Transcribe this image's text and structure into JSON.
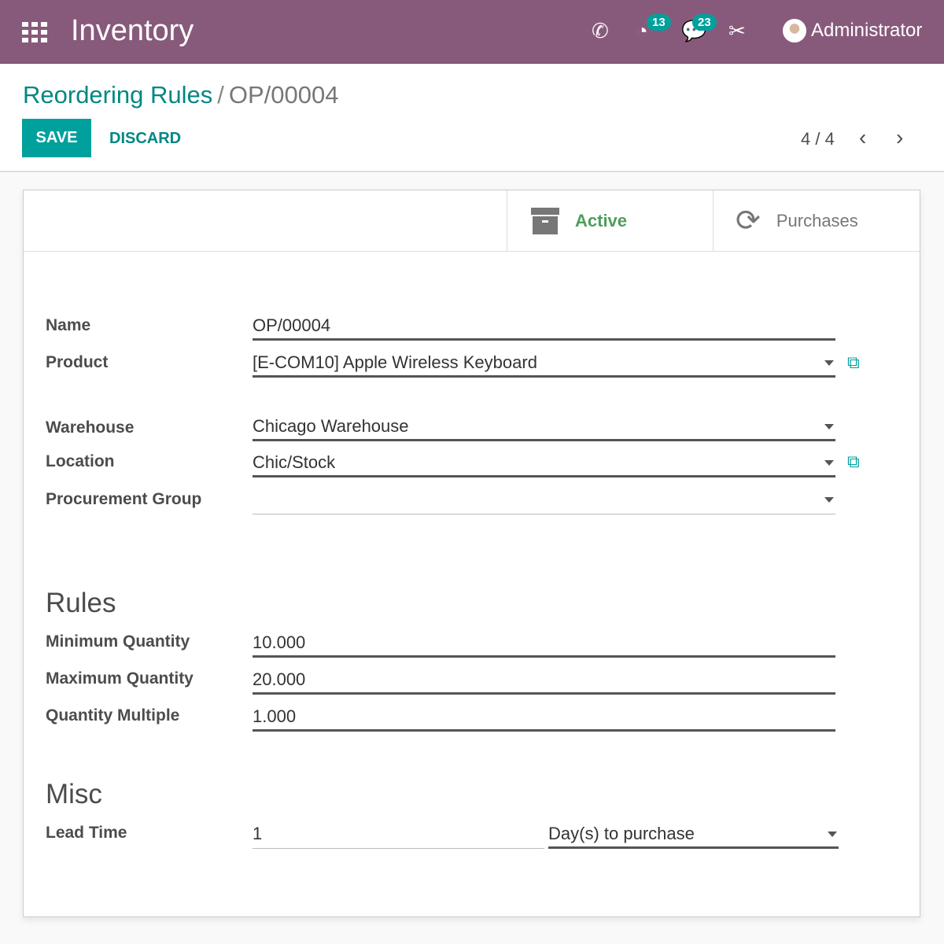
{
  "topbar": {
    "app": "Inventory",
    "activity_count": "13",
    "message_count": "23",
    "user": "Administrator"
  },
  "control": {
    "breadcrumb_parent": "Reordering Rules",
    "breadcrumb_sep": "/",
    "breadcrumb_current": "OP/00004",
    "save": "SAVE",
    "discard": "DISCARD",
    "pager": "4 / 4"
  },
  "buttons": {
    "active": "Active",
    "purchases": "Purchases",
    "active_color": "#4e9e5b"
  },
  "form": {
    "name_label": "Name",
    "name": "OP/00004",
    "product_label": "Product",
    "product": "[E-COM10] Apple Wireless Keyboard",
    "warehouse_label": "Warehouse",
    "warehouse": "Chicago Warehouse",
    "location_label": "Location",
    "location": "Chic/Stock",
    "group_label": "Procurement Group",
    "group": "",
    "rules_title": "Rules",
    "min_label": "Minimum Quantity",
    "min": "10.000",
    "max_label": "Maximum Quantity",
    "max": "20.000",
    "multiple_label": "Quantity Multiple",
    "multiple": "1.000",
    "misc_title": "Misc",
    "lead_label": "Lead Time",
    "lead": "1",
    "lead_unit": "Day(s) to purchase"
  }
}
